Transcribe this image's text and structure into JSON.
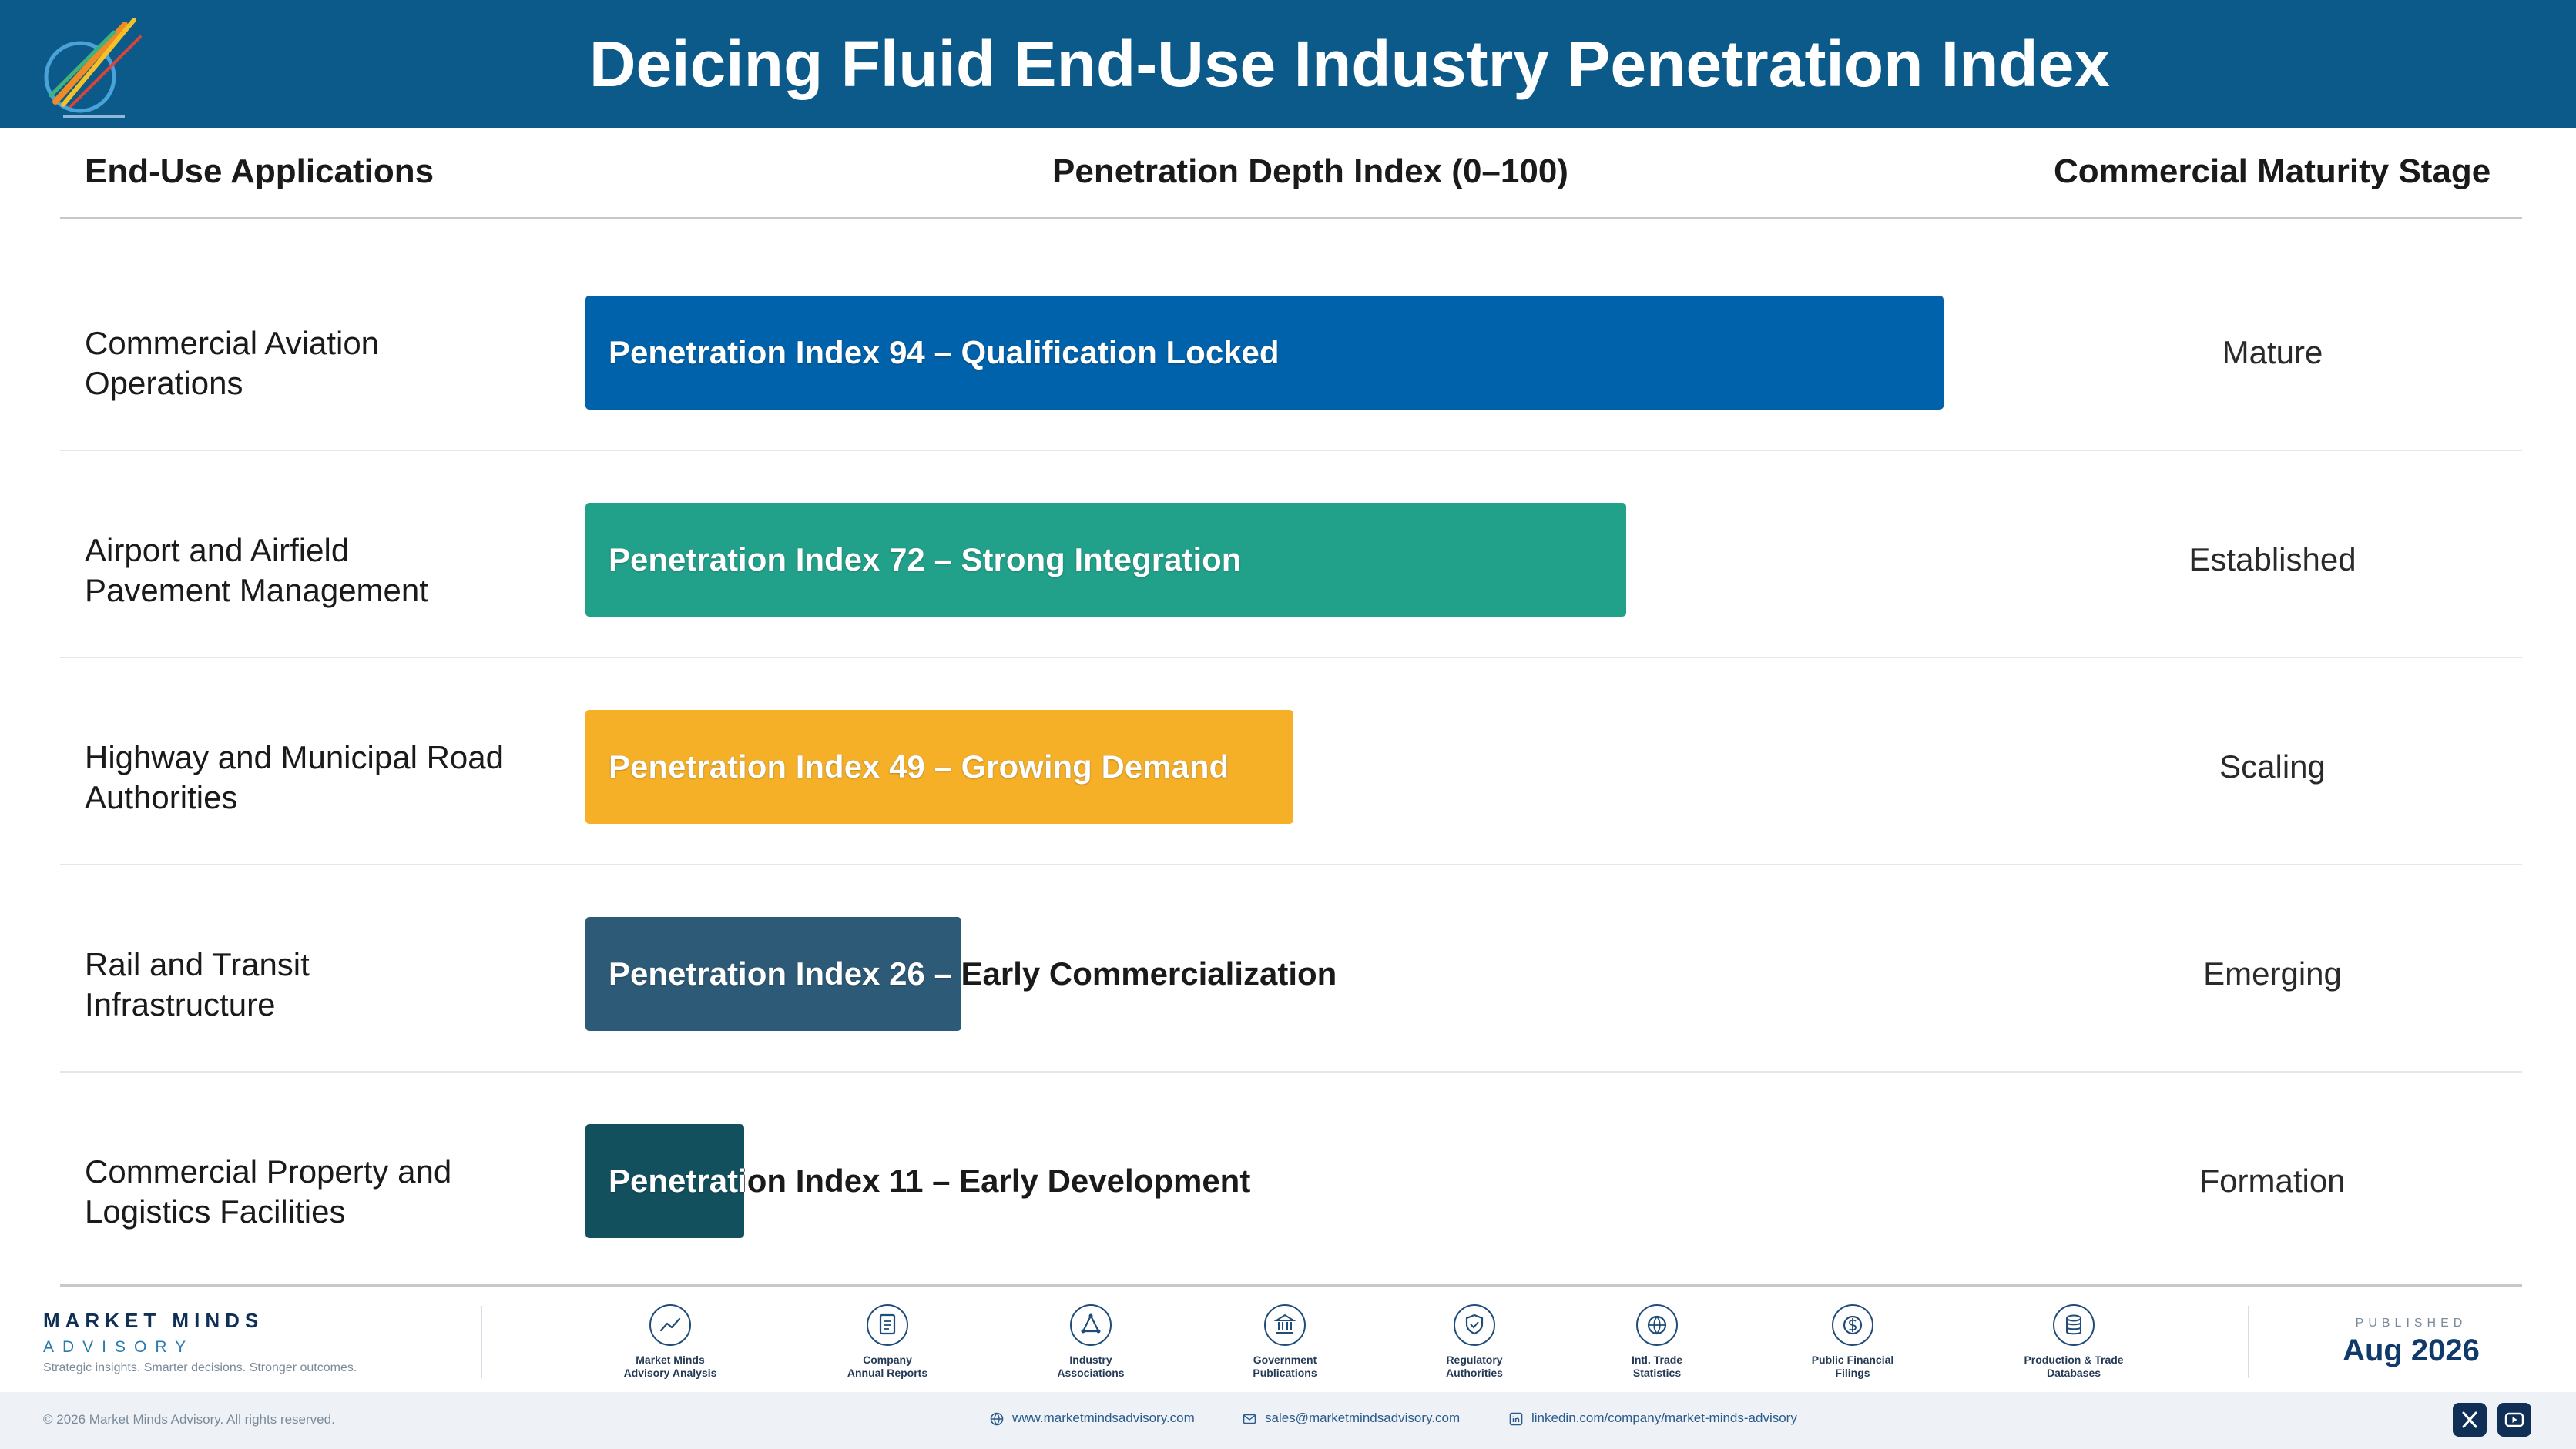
{
  "header": {
    "title": "Deicing Fluid End-Use Industry Penetration Index"
  },
  "columns": {
    "applications": "End-Use Applications",
    "index": "Penetration Depth Index (0–100)",
    "stage": "Commercial Maturity Stage"
  },
  "rows": [
    {
      "label_line1": "Commercial Aviation",
      "label_line2": "Operations",
      "bar_label": "Penetration Index 94 – Qualification Locked",
      "stage": "Mature"
    },
    {
      "label_line1": "Airport and Airfield",
      "label_line2": "Pavement Management",
      "bar_label": "Penetration Index 72 – Strong Integration",
      "stage": "Established"
    },
    {
      "label_line1": "Highway and Municipal Road",
      "label_line2": "Authorities",
      "bar_label": "Penetration Index 49 – Growing Demand",
      "stage": "Scaling"
    },
    {
      "label_line1": "Rail and Transit",
      "label_line2": "Infrastructure",
      "bar_label": "Penetration Index 26 – Early Commercialization",
      "stage": "Emerging"
    },
    {
      "label_line1": "Commercial Property and",
      "label_line2": "Logistics Facilities",
      "bar_label": "Penetration Index 11 – Early Development",
      "stage": "Formation"
    }
  ],
  "chart_data": {
    "type": "bar",
    "orientation": "horizontal",
    "title": "Deicing Fluid End-Use Industry Penetration Index",
    "xlabel": "Penetration Depth Index (0–100)",
    "xlim": [
      0,
      100
    ],
    "categories": [
      "Commercial Aviation Operations",
      "Airport and Airfield Pavement Management",
      "Highway and Municipal Road Authorities",
      "Rail and Transit Infrastructure",
      "Commercial Property and Logistics Facilities"
    ],
    "values": [
      94,
      72,
      49,
      26,
      11
    ],
    "value_labels": [
      "Penetration Index 94 – Qualification Locked",
      "Penetration Index 72 – Strong Integration",
      "Penetration Index 49 – Growing Demand",
      "Penetration Index 26 – Early Commercialization",
      "Penetration Index 11 – Early Development"
    ],
    "stages": [
      "Mature",
      "Established",
      "Scaling",
      "Emerging",
      "Formation"
    ],
    "colors": [
      "#0062ab",
      "#21a08a",
      "#f5b027",
      "#2d5a77",
      "#12505e"
    ],
    "grid": false
  },
  "footer": {
    "brand_name": "MARKET MINDS",
    "brand_sub": "ADVISORY",
    "tagline": "Strategic insights. Smarter decisions. Stronger outcomes.",
    "sources": [
      {
        "line1": "Market Minds",
        "line2": "Advisory Analysis",
        "icon": "chart-trend-icon"
      },
      {
        "line1": "Company",
        "line2": "Annual Reports",
        "icon": "document-icon"
      },
      {
        "line1": "Industry",
        "line2": "Associations",
        "icon": "network-icon"
      },
      {
        "line1": "Government",
        "line2": "Publications",
        "icon": "government-building-icon"
      },
      {
        "line1": "Regulatory",
        "line2": "Authorities",
        "icon": "shield-check-icon"
      },
      {
        "line1": "Intl. Trade",
        "line2": "Statistics",
        "icon": "globe-icon"
      },
      {
        "line1": "Public Financial",
        "line2": "Filings",
        "icon": "dollar-coin-icon"
      },
      {
        "line1": "Production & Trade",
        "line2": "Databases",
        "icon": "database-icon"
      }
    ],
    "published_label": "PUBLISHED",
    "published_date": "Aug 2026",
    "copyright": "© 2026 Market Minds Advisory. All rights reserved.",
    "website": "www.marketmindsadvisory.com",
    "email": "sales@marketmindsadvisory.com",
    "linkedin": "linkedin.com/company/market-minds-advisory"
  }
}
